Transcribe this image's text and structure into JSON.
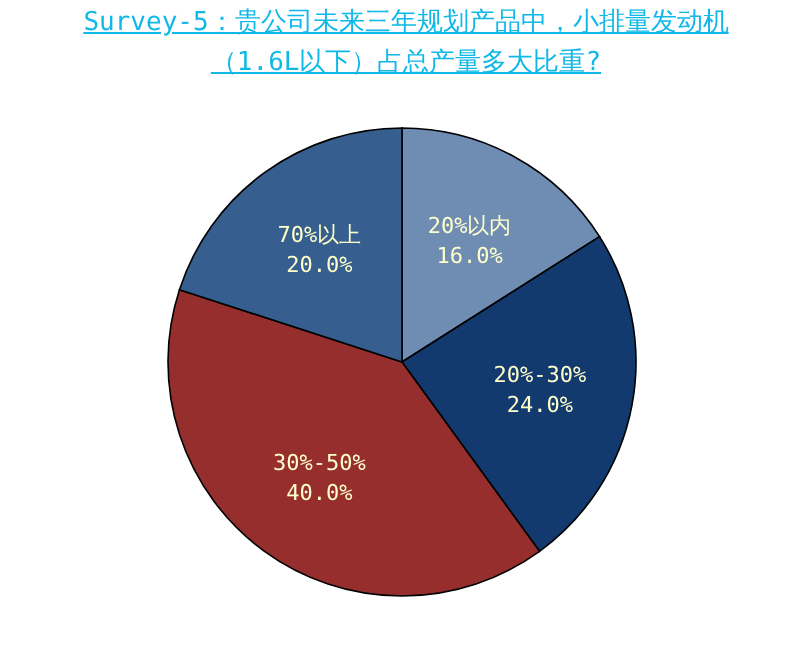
{
  "chart_data": {
    "type": "pie",
    "title": "Survey-5：贵公司未来三年规划产品中，小排量发动机（1.6L以下）占总产量多大比重?",
    "categories": [
      "20%以内",
      "20%-30%",
      "30%-50%",
      "70%以上"
    ],
    "values": [
      16.0,
      24.0,
      40.0,
      20.0
    ],
    "value_labels": [
      "16.0%",
      "24.0%",
      "40.0%",
      "20.0%"
    ],
    "colors": [
      "#6f8db3",
      "#123a6e",
      "#962e2e",
      "#365e8e"
    ]
  }
}
